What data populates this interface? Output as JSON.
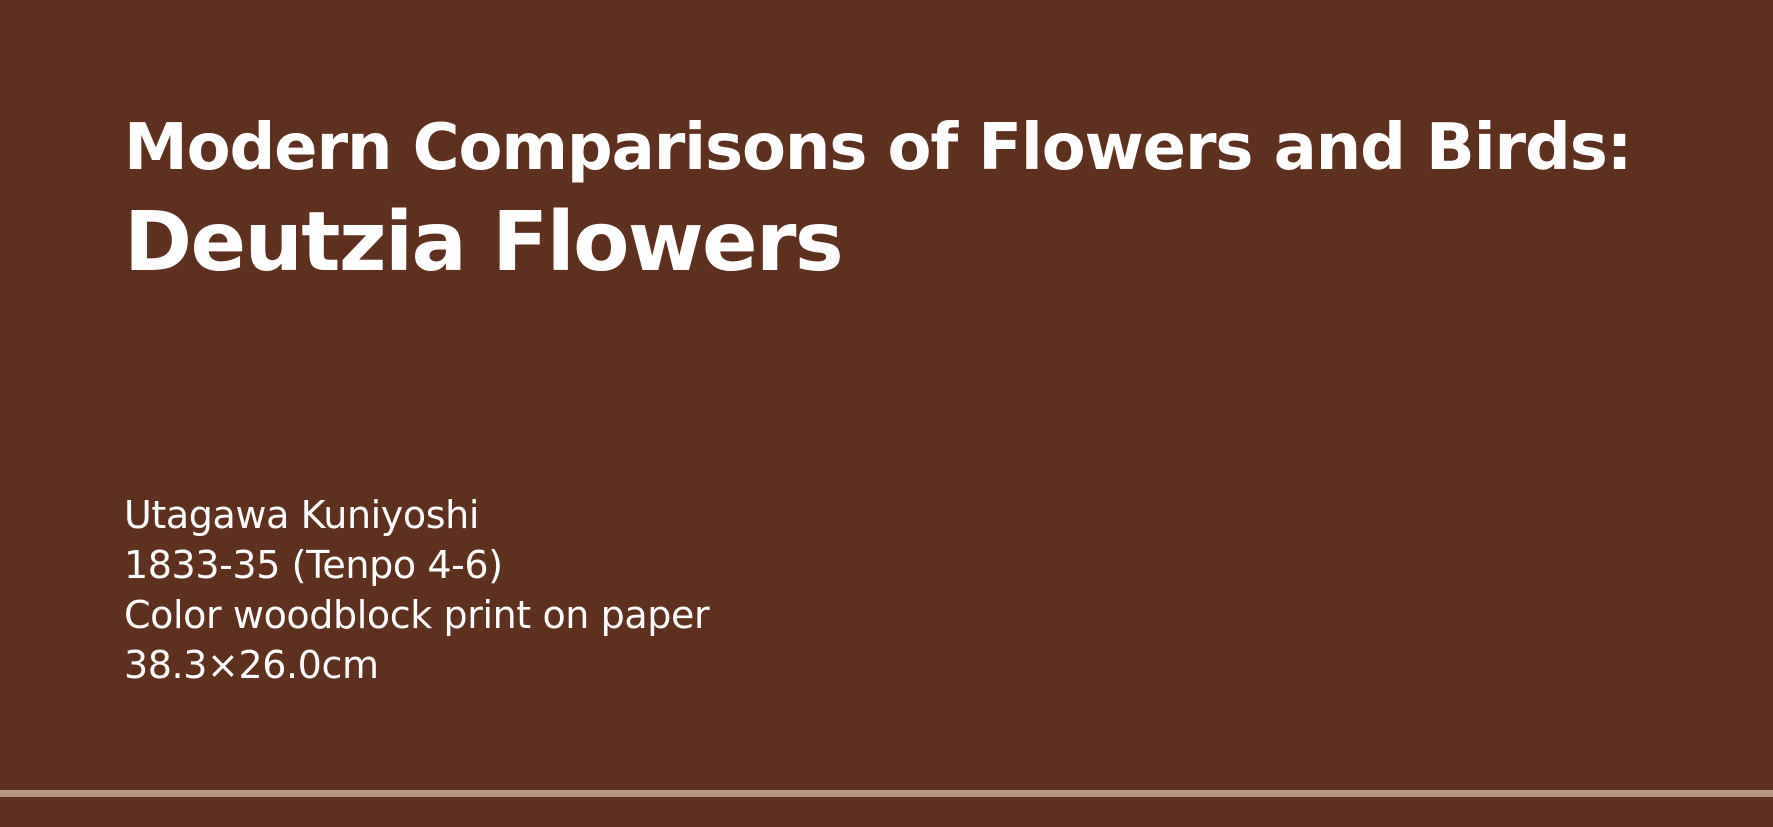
{
  "colors": {
    "background": "#5e301f",
    "text": "#ffffff",
    "rule": "#b89582"
  },
  "title": {
    "line1": "Modern Comparisons of Flowers and Birds:",
    "line2": "Deutzia Flowers"
  },
  "artwork": {
    "artist": "Utagawa Kuniyoshi",
    "date": "1833-35 (Tenpo 4-6)",
    "medium": "Color woodblock print on paper",
    "dimensions": "38.3×26.0cm"
  }
}
